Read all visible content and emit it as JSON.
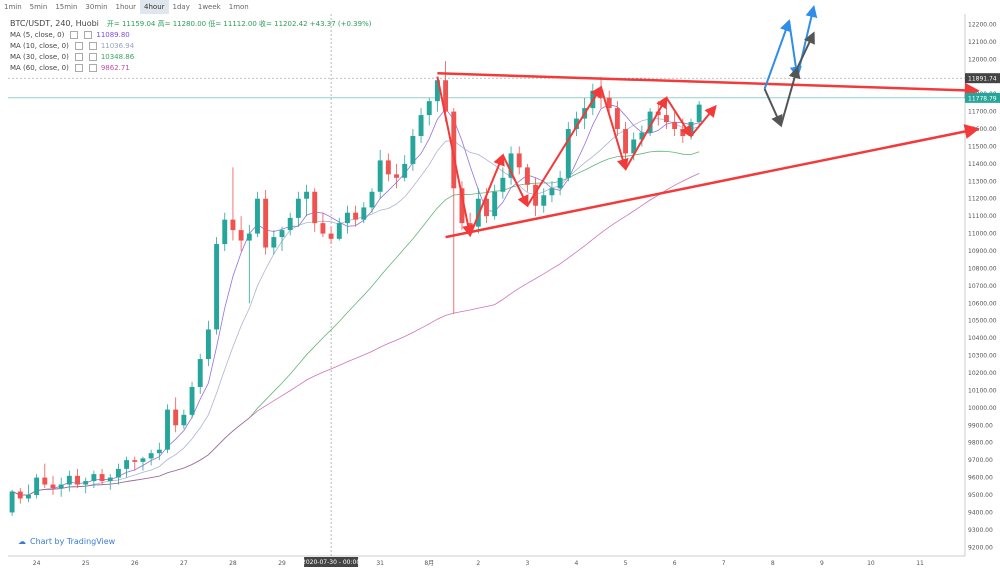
{
  "toolbar": {
    "intervals": [
      "1min",
      "5min",
      "15min",
      "30min",
      "1hour",
      "4hour",
      "1day",
      "1week",
      "1mon"
    ],
    "active": "4hour"
  },
  "legend": {
    "symbol": "BTC/USDT, 240, Huobi",
    "ohlc": "开= 11159.04  高= 11280.00  低= 11112.00  收= 11202.42  +43.37 (+0.39%)",
    "mas": [
      {
        "label": "MA (5, close, 0)",
        "value": "11089.80",
        "color": "#7b4dd6"
      },
      {
        "label": "MA (10, close, 0)",
        "value": "11036.94",
        "color": "#9aa0c4"
      },
      {
        "label": "MA (30, close, 0)",
        "value": "10348.86",
        "color": "#3aa35a"
      },
      {
        "label": "MA (60, close, 0)",
        "value": "9862.71",
        "color": "#c050a8"
      }
    ]
  },
  "price_labels": {
    "current": "11778.79",
    "crosshair": "11891.74"
  },
  "crosshair_date": "2020-07-30 - 00:00",
  "watermark": "Chart by TradingView",
  "chart_data": {
    "type": "candlestick",
    "yaxis": {
      "min": 9150,
      "max": 12260,
      "ticks": [
        9200,
        9300,
        9400,
        9500,
        9600,
        9700,
        9800,
        9900,
        10000,
        10100,
        10200,
        10300,
        10400,
        10500,
        10600,
        10700,
        10800,
        10900,
        11000,
        11100,
        11200,
        11300,
        11400,
        11500,
        11600,
        11700,
        11800,
        11900,
        12000,
        12100,
        12200
      ],
      "tick_labels": [
        "9200.00",
        "9300.00",
        "9400.00",
        "9500.00",
        "9600.00",
        "9700.00",
        "9800.00",
        "9900.00",
        "10000.00",
        "10100.00",
        "10200.00",
        "10300.00",
        "10400.00",
        "10500.00",
        "10600.00",
        "10700.00",
        "10800.00",
        "10900.00",
        "11000.00",
        "11100.00",
        "11200.00",
        "11300.00",
        "11400.00",
        "11500.00",
        "11600.00",
        "11700.00",
        "11800.00",
        "11900.00",
        "12000.00",
        "12100.00",
        "12200.00"
      ]
    },
    "xaxis": {
      "labels": [
        "24",
        "25",
        "26",
        "27",
        "28",
        "29",
        "30",
        "31",
        "8月",
        "2",
        "3",
        "4",
        "5",
        "6",
        "7",
        "8",
        "9",
        "10",
        "11"
      ],
      "label_index": [
        3,
        9,
        15,
        21,
        27,
        33,
        39,
        45,
        51,
        57,
        63,
        69,
        75,
        81,
        87,
        93,
        99,
        105,
        111
      ]
    },
    "candles": [
      [
        9400,
        9530,
        9380,
        9520
      ],
      [
        9520,
        9540,
        9450,
        9480
      ],
      [
        9480,
        9560,
        9460,
        9500
      ],
      [
        9500,
        9620,
        9480,
        9600
      ],
      [
        9600,
        9680,
        9540,
        9560
      ],
      [
        9560,
        9610,
        9500,
        9540
      ],
      [
        9540,
        9600,
        9490,
        9560
      ],
      [
        9560,
        9640,
        9520,
        9610
      ],
      [
        9610,
        9650,
        9540,
        9560
      ],
      [
        9560,
        9600,
        9510,
        9580
      ],
      [
        9580,
        9640,
        9540,
        9620
      ],
      [
        9620,
        9650,
        9560,
        9580
      ],
      [
        9580,
        9620,
        9530,
        9600
      ],
      [
        9600,
        9680,
        9560,
        9650
      ],
      [
        9650,
        9720,
        9600,
        9700
      ],
      [
        9700,
        9720,
        9640,
        9690
      ],
      [
        9690,
        9720,
        9640,
        9710
      ],
      [
        9710,
        9760,
        9670,
        9740
      ],
      [
        9740,
        9800,
        9700,
        9760
      ],
      [
        9760,
        10020,
        9740,
        9990
      ],
      [
        9990,
        10060,
        9860,
        9900
      ],
      [
        9900,
        9990,
        9880,
        9960
      ],
      [
        9960,
        10150,
        9940,
        10120
      ],
      [
        10120,
        10310,
        10080,
        10280
      ],
      [
        10280,
        10500,
        10240,
        10450
      ],
      [
        10450,
        10980,
        10420,
        10940
      ],
      [
        10940,
        11120,
        10900,
        11080
      ],
      [
        11080,
        11380,
        10960,
        11020
      ],
      [
        11020,
        11100,
        10900,
        10960
      ],
      [
        10960,
        11050,
        10600,
        11000
      ],
      [
        11000,
        11240,
        10980,
        11200
      ],
      [
        11200,
        11250,
        10880,
        10920
      ],
      [
        10920,
        11020,
        10880,
        10980
      ],
      [
        10980,
        11040,
        10900,
        11020
      ],
      [
        11020,
        11120,
        10990,
        11090
      ],
      [
        11090,
        11240,
        11040,
        11200
      ],
      [
        11200,
        11280,
        11100,
        11240
      ],
      [
        11240,
        11260,
        11010,
        11060
      ],
      [
        11060,
        11120,
        10980,
        11000
      ],
      [
        11000,
        11040,
        10940,
        10970
      ],
      [
        10970,
        11090,
        10960,
        11060
      ],
      [
        11060,
        11160,
        11000,
        11120
      ],
      [
        11120,
        11160,
        11040,
        11080
      ],
      [
        11080,
        11180,
        11060,
        11150
      ],
      [
        11150,
        11260,
        11120,
        11240
      ],
      [
        11240,
        11480,
        11200,
        11420
      ],
      [
        11420,
        11460,
        11300,
        11340
      ],
      [
        11340,
        11400,
        11260,
        11320
      ],
      [
        11320,
        11450,
        11300,
        11400
      ],
      [
        11400,
        11600,
        11360,
        11560
      ],
      [
        11560,
        11720,
        11520,
        11680
      ],
      [
        11680,
        11780,
        11620,
        11760
      ],
      [
        11760,
        11900,
        11700,
        11880
      ],
      [
        11880,
        11990,
        11640,
        11700
      ],
      [
        11700,
        11720,
        10540,
        11260
      ],
      [
        11260,
        11300,
        11020,
        11060
      ],
      [
        11060,
        11120,
        10980,
        11040
      ],
      [
        11040,
        11260,
        11000,
        11200
      ],
      [
        11200,
        11260,
        11060,
        11100
      ],
      [
        11100,
        11280,
        11080,
        11240
      ],
      [
        11240,
        11380,
        11200,
        11320
      ],
      [
        11320,
        11500,
        11280,
        11460
      ],
      [
        11460,
        11500,
        11340,
        11380
      ],
      [
        11380,
        11400,
        11240,
        11280
      ],
      [
        11280,
        11320,
        11100,
        11160
      ],
      [
        11160,
        11260,
        11120,
        11220
      ],
      [
        11220,
        11300,
        11180,
        11260
      ],
      [
        11260,
        11360,
        11220,
        11320
      ],
      [
        11320,
        11640,
        11300,
        11600
      ],
      [
        11600,
        11700,
        11560,
        11660
      ],
      [
        11660,
        11780,
        11600,
        11720
      ],
      [
        11720,
        11860,
        11680,
        11820
      ],
      [
        11820,
        11900,
        11720,
        11780
      ],
      [
        11780,
        11820,
        11680,
        11720
      ],
      [
        11720,
        11760,
        11560,
        11600
      ],
      [
        11600,
        11640,
        11400,
        11460
      ],
      [
        11460,
        11580,
        11420,
        11540
      ],
      [
        11540,
        11620,
        11500,
        11580
      ],
      [
        11580,
        11720,
        11560,
        11700
      ],
      [
        11700,
        11760,
        11620,
        11680
      ],
      [
        11680,
        11720,
        11600,
        11640
      ],
      [
        11640,
        11700,
        11560,
        11600
      ],
      [
        11600,
        11660,
        11520,
        11560
      ],
      [
        11560,
        11660,
        11540,
        11640
      ],
      [
        11640,
        11760,
        11620,
        11740
      ]
    ],
    "ma_series": [
      {
        "name": "MA (5, close, 0)",
        "color": "#7b4dd6"
      },
      {
        "name": "MA (10, close, 0)",
        "color": "#9aa0c4"
      },
      {
        "name": "MA (30, close, 0)",
        "color": "#3aa35a"
      },
      {
        "name": "MA (60, close, 0)",
        "color": "#c050a8"
      }
    ],
    "annotations": {
      "triangle_upper": [
        [
          52,
          11920
        ],
        [
          118,
          11820
        ]
      ],
      "triangle_lower": [
        [
          53,
          10980
        ],
        [
          118,
          11600
        ]
      ],
      "zigzag": [
        [
          52,
          11900
        ],
        [
          56,
          10990
        ],
        [
          60,
          11450
        ],
        [
          63,
          11160
        ],
        [
          72,
          11840
        ],
        [
          75,
          11370
        ],
        [
          80,
          11780
        ],
        [
          83,
          11560
        ],
        [
          86,
          11730
        ]
      ],
      "projection_up": [
        [
          92,
          11830
        ],
        [
          95,
          12220
        ],
        [
          96,
          11900
        ],
        [
          98,
          12300
        ]
      ],
      "projection_dark": [
        [
          92,
          11830
        ],
        [
          94,
          11620
        ],
        [
          96,
          11950
        ],
        [
          98,
          12150
        ]
      ],
      "colors": {
        "red": "#f23a3a",
        "blue": "#2f8fe8",
        "dark": "#555"
      }
    }
  }
}
